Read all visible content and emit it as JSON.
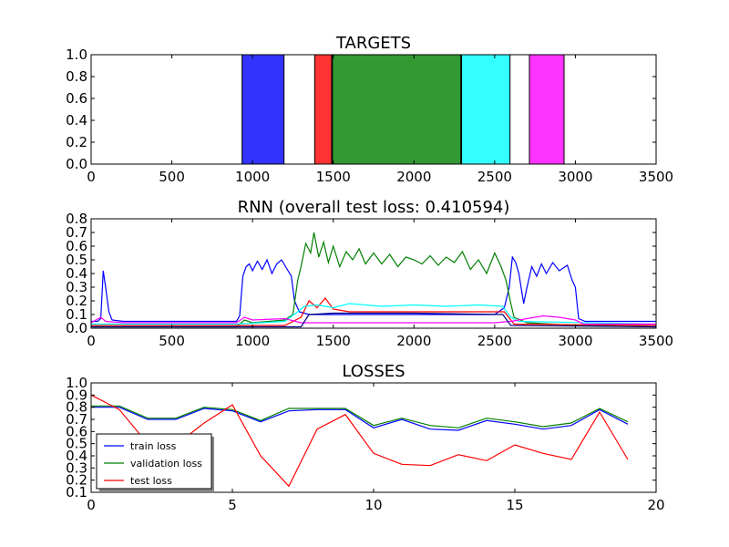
{
  "figure": {
    "background": "#ffffff"
  },
  "chart_data": [
    {
      "type": "bar",
      "title": "TARGETS",
      "xlim": [
        0,
        3500
      ],
      "ylim": [
        0,
        1.0
      ],
      "xticks": [
        0,
        500,
        1000,
        1500,
        2000,
        2500,
        3000,
        3500
      ],
      "yticks": [
        0.0,
        0.2,
        0.4,
        0.6,
        0.8,
        1.0
      ],
      "xtick_labels": [
        "0",
        "500",
        "1000",
        "1500",
        "2000",
        "2500",
        "3000",
        "3500"
      ],
      "ytick_labels": [
        "0.0",
        "0.2",
        "0.4",
        "0.6",
        "0.8",
        "1.0"
      ],
      "segments": [
        {
          "start": 935,
          "end": 1195,
          "value": 1.0,
          "color": "#3333ff"
        },
        {
          "start": 1385,
          "end": 1490,
          "value": 1.0,
          "color": "#ff3333"
        },
        {
          "start": 1495,
          "end": 2290,
          "value": 1.0,
          "color": "#339933"
        },
        {
          "start": 2295,
          "end": 2595,
          "value": 1.0,
          "color": "#33ffff"
        },
        {
          "start": 2715,
          "end": 2930,
          "value": 1.0,
          "color": "#ff33ff"
        }
      ]
    },
    {
      "type": "line",
      "title": "RNN (overall test loss: 0.410594)",
      "xlim": [
        0,
        3500
      ],
      "ylim": [
        0,
        0.8
      ],
      "xticks": [
        0,
        500,
        1000,
        1500,
        2000,
        2500,
        3000,
        3500
      ],
      "yticks": [
        0.0,
        0.1,
        0.2,
        0.3,
        0.4,
        0.5,
        0.6,
        0.7,
        0.8
      ],
      "xtick_labels": [
        "0",
        "500",
        "1000",
        "1500",
        "2000",
        "2500",
        "3000",
        "3500"
      ],
      "ytick_labels": [
        "0.0",
        "0.1",
        "0.2",
        "0.3",
        "0.4",
        "0.5",
        "0.6",
        "0.7",
        "0.8"
      ],
      "series": [
        {
          "color": "#0000ff",
          "points": [
            [
              0,
              0.05
            ],
            [
              40,
              0.05
            ],
            [
              60,
              0.07
            ],
            [
              75,
              0.42
            ],
            [
              90,
              0.3
            ],
            [
              110,
              0.12
            ],
            [
              130,
              0.06
            ],
            [
              200,
              0.05
            ],
            [
              400,
              0.05
            ],
            [
              600,
              0.05
            ],
            [
              800,
              0.05
            ],
            [
              900,
              0.05
            ],
            [
              920,
              0.09
            ],
            [
              940,
              0.38
            ],
            [
              960,
              0.45
            ],
            [
              980,
              0.47
            ],
            [
              1000,
              0.42
            ],
            [
              1030,
              0.49
            ],
            [
              1060,
              0.43
            ],
            [
              1090,
              0.5
            ],
            [
              1120,
              0.4
            ],
            [
              1150,
              0.47
            ],
            [
              1180,
              0.5
            ],
            [
              1210,
              0.44
            ],
            [
              1240,
              0.38
            ],
            [
              1260,
              0.2
            ],
            [
              1290,
              0.12
            ],
            [
              1350,
              0.1
            ],
            [
              1500,
              0.1
            ],
            [
              2000,
              0.1
            ],
            [
              2500,
              0.1
            ],
            [
              2560,
              0.15
            ],
            [
              2590,
              0.3
            ],
            [
              2610,
              0.52
            ],
            [
              2630,
              0.48
            ],
            [
              2650,
              0.4
            ],
            [
              2680,
              0.18
            ],
            [
              2700,
              0.3
            ],
            [
              2730,
              0.45
            ],
            [
              2760,
              0.38
            ],
            [
              2790,
              0.47
            ],
            [
              2820,
              0.4
            ],
            [
              2860,
              0.48
            ],
            [
              2900,
              0.42
            ],
            [
              2950,
              0.46
            ],
            [
              2980,
              0.35
            ],
            [
              3000,
              0.3
            ],
            [
              3020,
              0.07
            ],
            [
              3060,
              0.05
            ],
            [
              3500,
              0.05
            ]
          ]
        },
        {
          "color": "#008000",
          "points": [
            [
              0,
              0.01
            ],
            [
              900,
              0.01
            ],
            [
              950,
              0.06
            ],
            [
              1000,
              0.04
            ],
            [
              1100,
              0.05
            ],
            [
              1200,
              0.06
            ],
            [
              1250,
              0.1
            ],
            [
              1280,
              0.35
            ],
            [
              1300,
              0.45
            ],
            [
              1330,
              0.62
            ],
            [
              1360,
              0.55
            ],
            [
              1380,
              0.7
            ],
            [
              1410,
              0.52
            ],
            [
              1440,
              0.63
            ],
            [
              1470,
              0.48
            ],
            [
              1500,
              0.6
            ],
            [
              1540,
              0.45
            ],
            [
              1580,
              0.56
            ],
            [
              1620,
              0.5
            ],
            [
              1660,
              0.58
            ],
            [
              1700,
              0.47
            ],
            [
              1750,
              0.55
            ],
            [
              1800,
              0.47
            ],
            [
              1850,
              0.54
            ],
            [
              1900,
              0.45
            ],
            [
              1950,
              0.52
            ],
            [
              2000,
              0.5
            ],
            [
              2050,
              0.47
            ],
            [
              2100,
              0.53
            ],
            [
              2150,
              0.46
            ],
            [
              2200,
              0.52
            ],
            [
              2250,
              0.48
            ],
            [
              2300,
              0.56
            ],
            [
              2350,
              0.43
            ],
            [
              2400,
              0.5
            ],
            [
              2450,
              0.4
            ],
            [
              2500,
              0.55
            ],
            [
              2540,
              0.45
            ],
            [
              2570,
              0.35
            ],
            [
              2600,
              0.18
            ],
            [
              2620,
              0.08
            ],
            [
              2700,
              0.04
            ],
            [
              3000,
              0.02
            ],
            [
              3500,
              0.01
            ]
          ]
        },
        {
          "color": "#ff0000",
          "points": [
            [
              0,
              0.02
            ],
            [
              900,
              0.02
            ],
            [
              1200,
              0.02
            ],
            [
              1300,
              0.08
            ],
            [
              1350,
              0.2
            ],
            [
              1400,
              0.15
            ],
            [
              1450,
              0.22
            ],
            [
              1500,
              0.14
            ],
            [
              1550,
              0.13
            ],
            [
              1600,
              0.12
            ],
            [
              2000,
              0.12
            ],
            [
              2400,
              0.12
            ],
            [
              2560,
              0.12
            ],
            [
              2620,
              0.03
            ],
            [
              3500,
              0.02
            ]
          ]
        },
        {
          "color": "#00ffff",
          "points": [
            [
              0,
              0.03
            ],
            [
              900,
              0.03
            ],
            [
              1200,
              0.05
            ],
            [
              1280,
              0.12
            ],
            [
              1320,
              0.16
            ],
            [
              1400,
              0.17
            ],
            [
              1500,
              0.15
            ],
            [
              1600,
              0.18
            ],
            [
              1800,
              0.16
            ],
            [
              2000,
              0.17
            ],
            [
              2200,
              0.16
            ],
            [
              2400,
              0.17
            ],
            [
              2550,
              0.16
            ],
            [
              2600,
              0.08
            ],
            [
              2650,
              0.05
            ],
            [
              3500,
              0.03
            ]
          ]
        },
        {
          "color": "#ff00ff",
          "points": [
            [
              0,
              0.04
            ],
            [
              60,
              0.08
            ],
            [
              90,
              0.05
            ],
            [
              200,
              0.04
            ],
            [
              900,
              0.04
            ],
            [
              950,
              0.08
            ],
            [
              1000,
              0.06
            ],
            [
              1200,
              0.07
            ],
            [
              1300,
              0.04
            ],
            [
              2500,
              0.04
            ],
            [
              2600,
              0.05
            ],
            [
              2700,
              0.07
            ],
            [
              2800,
              0.09
            ],
            [
              2900,
              0.08
            ],
            [
              3000,
              0.06
            ],
            [
              3050,
              0.03
            ],
            [
              3500,
              0.03
            ]
          ]
        },
        {
          "color": "#000080",
          "points": [
            [
              0,
              0.01
            ],
            [
              1300,
              0.01
            ],
            [
              1350,
              0.1
            ],
            [
              1500,
              0.11
            ],
            [
              2000,
              0.11
            ],
            [
              2550,
              0.1
            ],
            [
              2600,
              0.02
            ],
            [
              3500,
              0.01
            ]
          ]
        }
      ]
    },
    {
      "type": "line",
      "title": "LOSSES",
      "xlim": [
        0,
        20
      ],
      "ylim": [
        0.1,
        1.0
      ],
      "xticks": [
        0,
        5,
        10,
        15,
        20
      ],
      "yticks": [
        0.1,
        0.2,
        0.3,
        0.4,
        0.5,
        0.6,
        0.7,
        0.8,
        0.9,
        1.0
      ],
      "xtick_labels": [
        "0",
        "5",
        "10",
        "15",
        "20"
      ],
      "ytick_labels": [
        "0.1",
        "0.2",
        "0.3",
        "0.4",
        "0.5",
        "0.6",
        "0.7",
        "0.8",
        "0.9",
        "1.0"
      ],
      "x": [
        0,
        1,
        2,
        3,
        4,
        5,
        6,
        7,
        8,
        9,
        10,
        11,
        12,
        13,
        14,
        15,
        16,
        17,
        18,
        19
      ],
      "series": [
        {
          "name": "train loss",
          "color": "#0000ff",
          "values": [
            0.8,
            0.8,
            0.7,
            0.7,
            0.79,
            0.77,
            0.68,
            0.77,
            0.78,
            0.78,
            0.63,
            0.7,
            0.62,
            0.61,
            0.69,
            0.66,
            0.62,
            0.65,
            0.78,
            0.66
          ]
        },
        {
          "name": "validation loss",
          "color": "#008000",
          "values": [
            0.81,
            0.81,
            0.71,
            0.71,
            0.8,
            0.78,
            0.69,
            0.79,
            0.79,
            0.79,
            0.65,
            0.71,
            0.65,
            0.63,
            0.71,
            0.68,
            0.64,
            0.67,
            0.79,
            0.68
          ]
        },
        {
          "name": "test loss",
          "color": "#ff0000",
          "values": [
            0.9,
            0.78,
            0.5,
            0.49,
            0.67,
            0.82,
            0.4,
            0.15,
            0.62,
            0.74,
            0.42,
            0.33,
            0.32,
            0.41,
            0.36,
            0.49,
            0.42,
            0.37,
            0.76,
            0.37
          ]
        }
      ],
      "legend": {
        "position": "lower-left",
        "entries": [
          "train loss",
          "validation loss",
          "test loss"
        ]
      }
    }
  ]
}
